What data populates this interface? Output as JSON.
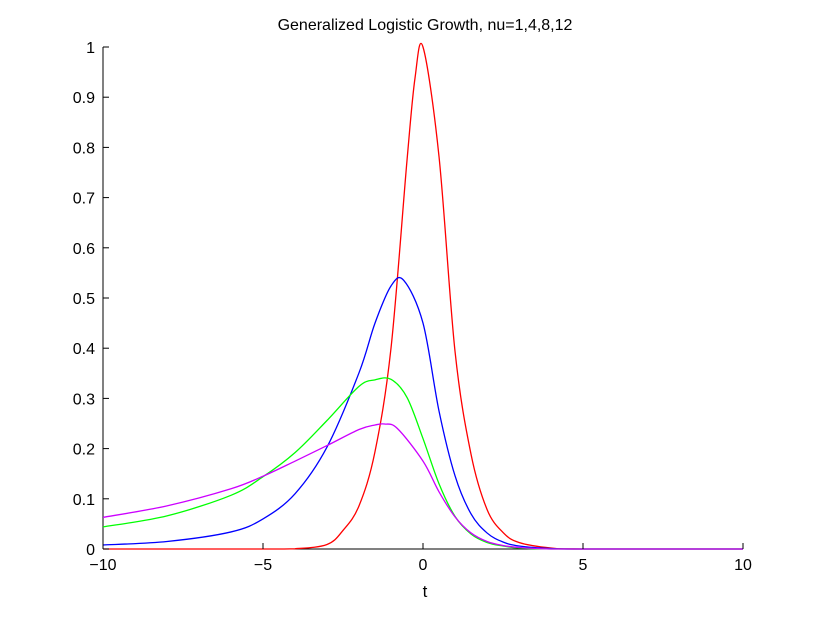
{
  "chart_data": {
    "type": "line",
    "title": "Generalized Logistic Growth, nu=1,4,8,12",
    "xlabel": "t",
    "ylabel": "",
    "xlim": [
      -10,
      10
    ],
    "ylim": [
      0,
      1
    ],
    "xticks": [
      -10,
      -5,
      0,
      5,
      10
    ],
    "xtick_labels": [
      "−10",
      "−5",
      "0",
      "5",
      "10"
    ],
    "yticks": [
      0,
      0.1,
      0.2,
      0.3,
      0.4,
      0.5,
      0.6,
      0.7,
      0.8,
      0.9,
      1
    ],
    "ytick_labels": [
      "0",
      "0.1",
      "0.2",
      "0.3",
      "0.4",
      "0.5",
      "0.6",
      "0.7",
      "0.8",
      "0.9",
      "1"
    ],
    "grid": false,
    "legend": "none",
    "series": [
      {
        "color": "#ff0000",
        "x": [
          -10,
          -5,
          -4,
          -3,
          -2.5,
          -2,
          -1.5,
          -1,
          -0.5,
          -0.25,
          0,
          0.5,
          1,
          1.5,
          2,
          2.5,
          3,
          4,
          5,
          10
        ],
        "y": [
          0.0,
          0.0,
          0.0005,
          0.009,
          0.037,
          0.086,
          0.194,
          0.4,
          0.774,
          0.938,
          1.0,
          0.782,
          0.394,
          0.189,
          0.079,
          0.033,
          0.013,
          0.002,
          0.0,
          0.0
        ]
      },
      {
        "color": "#0000ff",
        "x": [
          -10,
          -8,
          -6,
          -5,
          -4,
          -3,
          -2,
          -1.5,
          -1,
          -0.6,
          0,
          0.5,
          1,
          1.5,
          2,
          2.5,
          3,
          4,
          5,
          10
        ],
        "y": [
          0.008,
          0.015,
          0.034,
          0.06,
          0.11,
          0.203,
          0.351,
          0.45,
          0.524,
          0.535,
          0.45,
          0.275,
          0.146,
          0.07,
          0.032,
          0.014,
          0.006,
          0.001,
          0.0,
          0.0
        ]
      },
      {
        "color": "#00ff00",
        "x": [
          -10,
          -8,
          -6,
          -5,
          -4,
          -3,
          -2,
          -1.5,
          -1,
          -0.5,
          0,
          0.5,
          1,
          1.5,
          2,
          2.5,
          3,
          4,
          5,
          10
        ],
        "y": [
          0.044,
          0.066,
          0.107,
          0.144,
          0.192,
          0.256,
          0.324,
          0.337,
          0.338,
          0.302,
          0.22,
          0.13,
          0.065,
          0.03,
          0.013,
          0.006,
          0.002,
          0.0,
          0.0,
          0.0
        ]
      },
      {
        "color": "#cc00ff",
        "x": [
          -10,
          -8,
          -6,
          -5,
          -4,
          -3,
          -2,
          -1.5,
          -1.2,
          -0.8,
          0,
          0.5,
          1,
          1.5,
          2,
          2.5,
          3,
          4,
          5,
          10
        ],
        "y": [
          0.063,
          0.086,
          0.12,
          0.145,
          0.175,
          0.206,
          0.238,
          0.247,
          0.249,
          0.24,
          0.175,
          0.114,
          0.064,
          0.032,
          0.015,
          0.007,
          0.003,
          0.0,
          0.0,
          0.0
        ]
      }
    ]
  }
}
